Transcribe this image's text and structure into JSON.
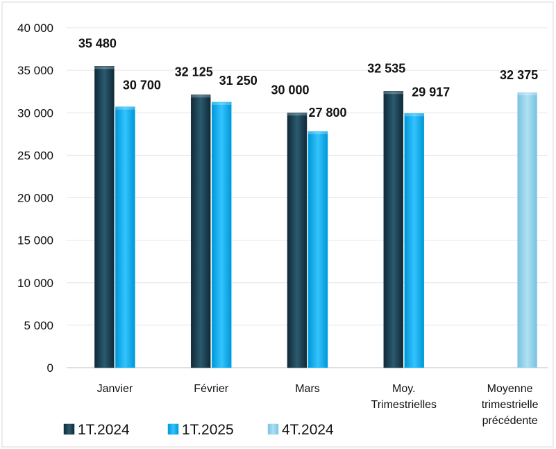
{
  "chart_data": {
    "type": "bar",
    "title": "",
    "xlabel": "",
    "ylabel": "",
    "ylim": [
      0,
      40000
    ],
    "yticks": [
      0,
      5000,
      10000,
      15000,
      20000,
      25000,
      30000,
      35000,
      40000
    ],
    "ytick_labels": [
      "0",
      "5 000",
      "10 000",
      "15 000",
      "20 000",
      "25 000",
      "30 000",
      "35 000",
      "40 000"
    ],
    "grid": true,
    "legend_position": "bottom-left",
    "categories": [
      [
        "Janvier"
      ],
      [
        "Février"
      ],
      [
        "Mars"
      ],
      [
        "Moy.",
        "Trimestrielles"
      ],
      [
        "Moyenne",
        "trimestrielle",
        "précédente"
      ]
    ],
    "series": [
      {
        "name": "1T.2024",
        "color": "#17394a",
        "values": [
          35480,
          32125,
          30000,
          32535,
          null
        ],
        "labels": [
          "35 480",
          "32 125",
          "30 000",
          "32 535",
          ""
        ]
      },
      {
        "name": "1T.2025",
        "color": "#00b0f0",
        "values": [
          30700,
          31250,
          27800,
          29917,
          null
        ],
        "labels": [
          "30 700",
          "31 250",
          "27 800",
          "29 917",
          ""
        ]
      },
      {
        "name": "4T.2024",
        "color": "#8fd0ea",
        "values": [
          null,
          null,
          null,
          null,
          32375
        ],
        "labels": [
          "",
          "",
          "",
          "",
          "32 375"
        ]
      }
    ]
  }
}
